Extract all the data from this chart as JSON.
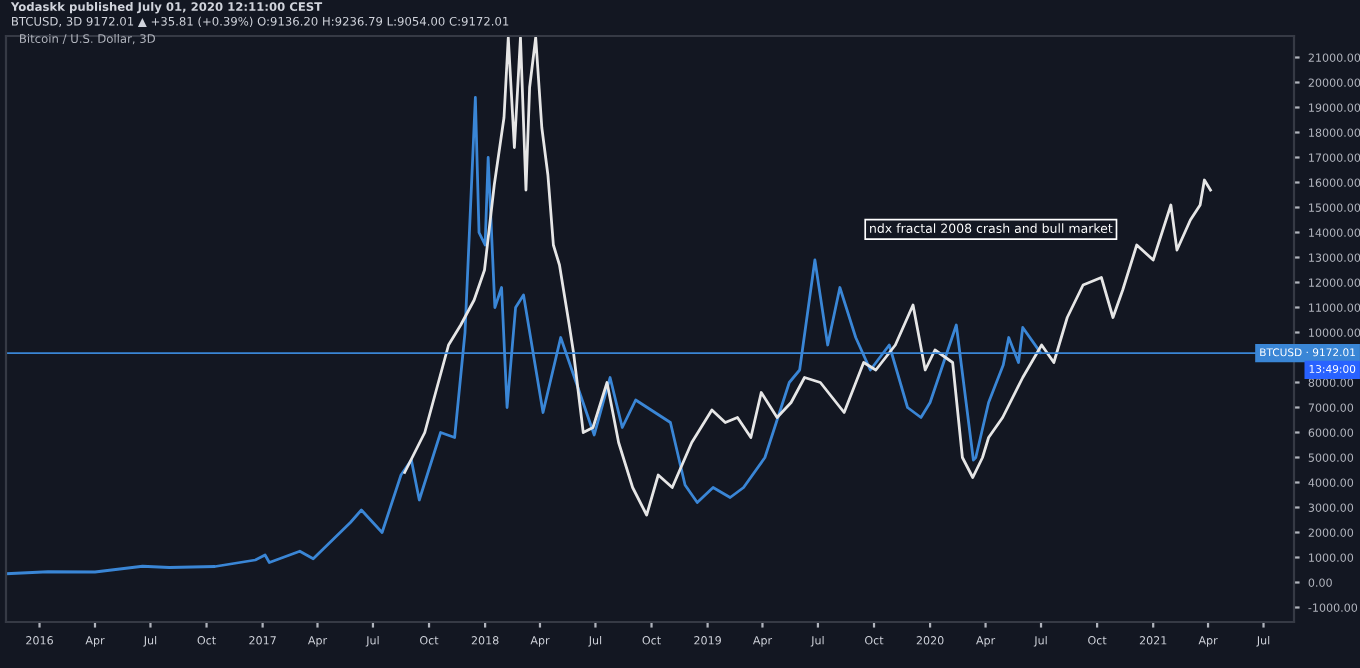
{
  "chart_data": {
    "type": "line",
    "title": "Bitcoin / U.S. Dollar, 3D",
    "annotations": [
      "Yodaskk published July 01, 2020 12:11:00 CEST",
      "BTCUSD, 3D 9172.01 ▲ +35.81 (+0.39%) O:9136.20 H:9236.79 L:9054.00 C:9172.01",
      "ndx fractal 2008 crash and bull market",
      "13:49:00"
    ],
    "series": [
      {
        "color": "#3a86d6",
        "x": [
          "2015-11-07",
          "2016-01-15",
          "2016-04-01",
          "2016-06-18",
          "2016-08-01",
          "2016-10-15",
          "2016-12-20",
          "2017-01-05",
          "2017-01-12",
          "2017-03-03",
          "2017-03-25",
          "2017-05-25",
          "2017-06-12",
          "2017-07-16",
          "2017-08-16",
          "2017-09-02",
          "2017-09-15",
          "2017-10-20",
          "2017-11-12",
          "2017-11-29",
          "2017-12-16",
          "2017-12-22",
          "2018-01-01",
          "2018-01-06",
          "2018-01-17",
          "2018-01-28",
          "2018-02-06",
          "2018-02-20",
          "2018-03-05",
          "2018-04-06",
          "2018-05-05",
          "2018-06-29",
          "2018-07-25",
          "2018-08-14",
          "2018-09-05",
          "2018-11-01",
          "2018-11-25",
          "2018-12-15",
          "2019-01-10",
          "2019-02-07",
          "2019-03-01",
          "2019-04-05",
          "2019-05-15",
          "2019-06-01",
          "2019-06-26",
          "2019-07-17",
          "2019-08-06",
          "2019-09-01",
          "2019-09-25",
          "2019-10-26",
          "2019-11-25",
          "2019-12-17",
          "2020-01-01",
          "2020-02-13",
          "2020-03-12",
          "2020-03-16",
          "2020-04-06",
          "2020-04-30",
          "2020-05-09",
          "2020-05-25",
          "2020-06-01",
          "2020-06-30"
        ],
        "values": [
          350,
          430,
          420,
          650,
          600,
          640,
          900,
          1100,
          800,
          1250,
          950,
          2400,
          2900,
          2000,
          4300,
          4900,
          3300,
          6000,
          5800,
          10000,
          19400,
          14000,
          13500,
          17000,
          11000,
          11800,
          7000,
          11000,
          11500,
          6800,
          9800,
          5900,
          8200,
          6200,
          7300,
          6400,
          3900,
          3200,
          3800,
          3400,
          3800,
          5000,
          8000,
          8500,
          12900,
          9500,
          11800,
          9800,
          8500,
          9500,
          7000,
          6600,
          7200,
          10300,
          4900,
          5000,
          7200,
          8700,
          9800,
          8800,
          10200,
          9200
        ]
      },
      {
        "color": "#e6e6e6",
        "x": [
          "2017-08-22",
          "2017-09-24",
          "2017-11-02",
          "2017-11-22",
          "2017-12-14",
          "2017-12-31",
          "2018-01-16",
          "2018-02-01",
          "2018-02-08",
          "2018-02-18",
          "2018-02-28",
          "2018-03-09",
          "2018-03-15",
          "2018-03-25",
          "2018-04-04",
          "2018-04-14",
          "2018-04-23",
          "2018-05-03",
          "2018-05-19",
          "2018-05-26",
          "2018-06-11",
          "2018-06-27",
          "2018-07-20",
          "2018-08-08",
          "2018-08-31",
          "2018-09-23",
          "2018-10-12",
          "2018-11-04",
          "2018-12-06",
          "2019-01-08",
          "2019-01-30",
          "2019-02-19",
          "2019-03-13",
          "2019-03-30",
          "2019-04-25",
          "2019-05-18",
          "2019-06-09",
          "2019-07-05",
          "2019-08-13",
          "2019-09-14",
          "2019-10-04",
          "2019-11-05",
          "2019-12-04",
          "2019-12-24",
          "2020-01-09",
          "2020-02-07",
          "2020-02-23",
          "2020-03-11",
          "2020-03-27",
          "2020-04-06",
          "2020-04-29",
          "2020-06-01",
          "2020-07-02",
          "2020-07-22",
          "2020-08-13",
          "2020-09-08",
          "2020-10-08",
          "2020-10-27",
          "2020-11-12",
          "2020-12-05",
          "2021-01-01",
          "2021-01-30",
          "2021-02-09",
          "2021-03-03",
          "2021-03-19",
          "2021-03-26",
          "2021-04-05"
        ],
        "values": [
          4400,
          6000,
          9500,
          10300,
          11300,
          12500,
          15900,
          18600,
          21800,
          17400,
          21800,
          15700,
          19800,
          21800,
          18200,
          16300,
          13500,
          12700,
          10300,
          9200,
          6000,
          6200,
          8000,
          5600,
          3800,
          2700,
          4300,
          3800,
          5600,
          6900,
          6400,
          6600,
          5800,
          7600,
          6600,
          7200,
          8200,
          8000,
          6800,
          8800,
          8500,
          9500,
          11100,
          8500,
          9300,
          8800,
          5000,
          4200,
          5000,
          5800,
          6600,
          8200,
          9500,
          8800,
          10600,
          11900,
          12200,
          10600,
          11700,
          13500,
          12900,
          15100,
          13300,
          14500,
          15100,
          16100,
          15700
        ]
      }
    ],
    "xlim": [
      "2015-11-07",
      "2021-08-20"
    ],
    "xticks": [
      {
        "value": "2016-01-01",
        "label": "2016"
      },
      {
        "value": "2016-04-01",
        "label": "Apr"
      },
      {
        "value": "2016-07-01",
        "label": "Jul"
      },
      {
        "value": "2016-10-01",
        "label": "Oct"
      },
      {
        "value": "2017-01-01",
        "label": "2017"
      },
      {
        "value": "2017-04-01",
        "label": "Apr"
      },
      {
        "value": "2017-07-01",
        "label": "Jul"
      },
      {
        "value": "2017-10-01",
        "label": "Oct"
      },
      {
        "value": "2018-01-01",
        "label": "2018"
      },
      {
        "value": "2018-04-01",
        "label": "Apr"
      },
      {
        "value": "2018-07-01",
        "label": "Jul"
      },
      {
        "value": "2018-10-01",
        "label": "Oct"
      },
      {
        "value": "2019-01-01",
        "label": "2019"
      },
      {
        "value": "2019-04-01",
        "label": "Apr"
      },
      {
        "value": "2019-07-01",
        "label": "Jul"
      },
      {
        "value": "2019-10-01",
        "label": "Oct"
      },
      {
        "value": "2020-01-01",
        "label": "2020"
      },
      {
        "value": "2020-04-01",
        "label": "Apr"
      },
      {
        "value": "2020-07-01",
        "label": "Jul"
      },
      {
        "value": "2020-10-01",
        "label": "Oct"
      },
      {
        "value": "2021-01-01",
        "label": "2021"
      },
      {
        "value": "2021-04-01",
        "label": "Apr"
      },
      {
        "value": "2021-07-01",
        "label": "Jul"
      }
    ],
    "ylim": [
      -1580,
      21860
    ],
    "yticks": [
      {
        "value": -1000,
        "label": "-1000.00"
      },
      {
        "value": 0,
        "label": "0.00"
      },
      {
        "value": 1000,
        "label": "1000.00"
      },
      {
        "value": 2000,
        "label": "2000.00"
      },
      {
        "value": 3000,
        "label": "3000.00"
      },
      {
        "value": 4000,
        "label": "4000.00"
      },
      {
        "value": 5000,
        "label": "5000.00"
      },
      {
        "value": 6000,
        "label": "6000.00"
      },
      {
        "value": 7000,
        "label": "7000.00"
      },
      {
        "value": 8000,
        "label": "8000.00"
      },
      {
        "value": 10000,
        "label": "10000.00"
      },
      {
        "value": 11000,
        "label": "11000.00"
      },
      {
        "value": 12000,
        "label": "12000.00"
      },
      {
        "value": 13000,
        "label": "13000.00"
      },
      {
        "value": 14000,
        "label": "14000.00"
      },
      {
        "value": 15000,
        "label": "15000.00"
      },
      {
        "value": 16000,
        "label": "16000.00"
      },
      {
        "value": 17000,
        "label": "17000.00"
      },
      {
        "value": 18000,
        "label": "18000.00"
      },
      {
        "value": 19000,
        "label": "19000.00"
      },
      {
        "value": 20000,
        "label": "20000.00"
      },
      {
        "value": 21000,
        "label": "21000.00"
      }
    ],
    "ref_lines": [
      {
        "axis": "y",
        "value": 9172.01,
        "label": "BTCUSD · 9172.01",
        "color": "#3a86d6"
      }
    ],
    "grid": false,
    "marker": "none",
    "line_style": "solid"
  }
}
